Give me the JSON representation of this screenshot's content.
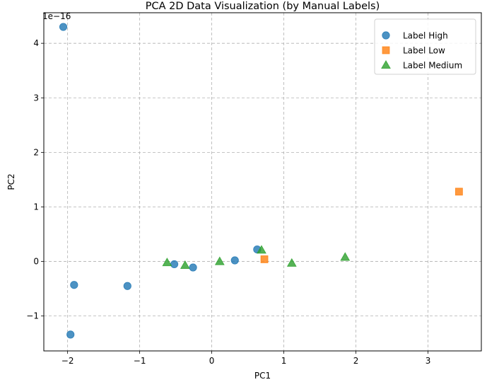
{
  "chart_data": {
    "type": "scatter",
    "title": "PCA 2D Data Visualization (by Manual Labels)",
    "xlabel": "PC1",
    "ylabel": "PC2",
    "y_scale_label": "1e−16",
    "xlim": [
      -2.33,
      3.74
    ],
    "ylim": [
      -1.64,
      4.56
    ],
    "x_ticks": [
      -2,
      -1,
      0,
      1,
      2,
      3
    ],
    "x_tick_labels": [
      "−2",
      "−1",
      "0",
      "1",
      "2",
      "3"
    ],
    "y_ticks": [
      -1,
      0,
      1,
      2,
      3,
      4
    ],
    "y_tick_labels": [
      "−1",
      "0",
      "1",
      "2",
      "3",
      "4"
    ],
    "grid": true,
    "legend_position": "top-right",
    "series": [
      {
        "name": "Label High",
        "marker": "circle",
        "color": "#1f77b4",
        "points": [
          {
            "x": -2.06,
            "y": 4.3
          },
          {
            "x": -1.91,
            "y": -0.43
          },
          {
            "x": -1.96,
            "y": -1.34
          },
          {
            "x": -1.17,
            "y": -0.45
          },
          {
            "x": -0.52,
            "y": -0.05
          },
          {
            "x": -0.26,
            "y": -0.11
          },
          {
            "x": 0.32,
            "y": 0.02
          },
          {
            "x": 0.63,
            "y": 0.22
          }
        ]
      },
      {
        "name": "Label Low",
        "marker": "square",
        "color": "#ff7f0e",
        "points": [
          {
            "x": 0.73,
            "y": 0.04
          },
          {
            "x": 3.43,
            "y": 1.28
          }
        ]
      },
      {
        "name": "Label Medium",
        "marker": "triangle",
        "color": "#2ca02c",
        "points": [
          {
            "x": -0.62,
            "y": -0.02
          },
          {
            "x": -0.37,
            "y": -0.07
          },
          {
            "x": 0.11,
            "y": 0.0
          },
          {
            "x": 0.69,
            "y": 0.21
          },
          {
            "x": 1.11,
            "y": -0.03
          },
          {
            "x": 1.85,
            "y": 0.08
          }
        ]
      }
    ]
  }
}
